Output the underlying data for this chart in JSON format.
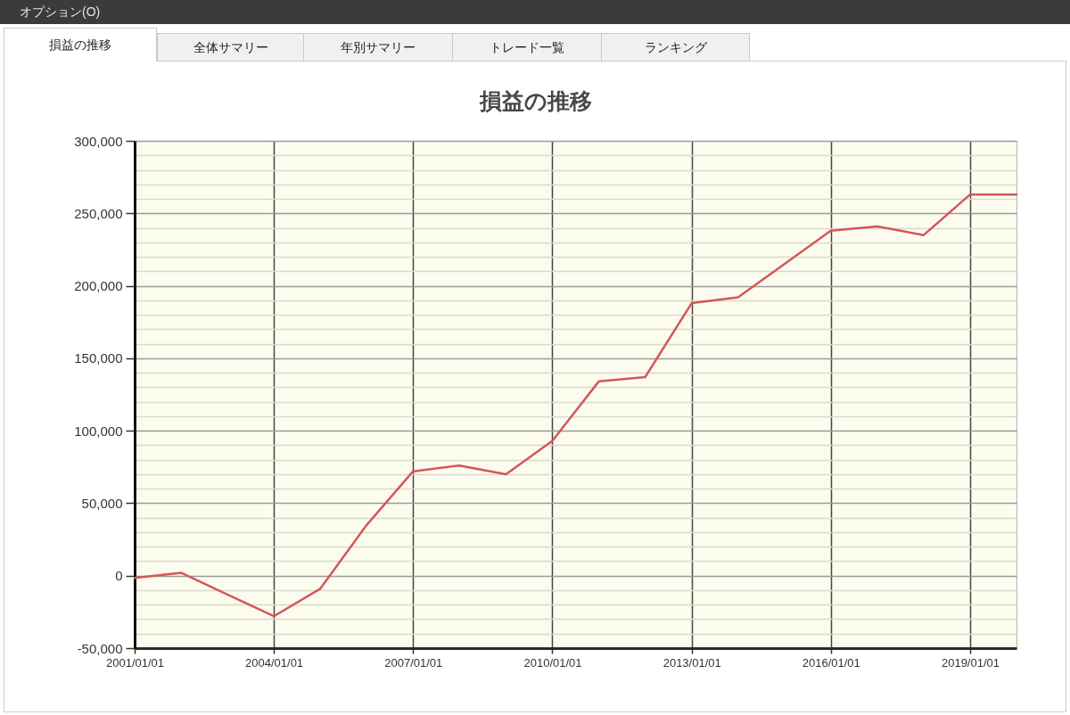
{
  "chart_data": {
    "type": "line",
    "title": "損益の推移",
    "annotations": [
      "オプション(O)",
      "損益の推移",
      "全体サマリー",
      "年別サマリー",
      "トレード一覧",
      "ランキング"
    ],
    "x": [
      "2001-01-01",
      "2002-01-01",
      "2004-01-01",
      "2005-01-01",
      "2006-01-01",
      "2007-01-01",
      "2008-01-01",
      "2009-01-01",
      "2010-01-01",
      "2011-01-01",
      "2012-01-01",
      "2013-01-01",
      "2014-01-01",
      "2016-01-01",
      "2017-01-01",
      "2018-01-01",
      "2019-01-01",
      "2020-01-01"
    ],
    "series": [
      {
        "color": "#d35858",
        "values": [
          -1500,
          2000,
          -28000,
          -9000,
          35000,
          72000,
          76000,
          70000,
          93000,
          134000,
          137000,
          188000,
          192000,
          238000,
          241000,
          235000,
          263000,
          263000
        ]
      }
    ],
    "xlim": [
      "2001-01-01",
      "2020-01-01"
    ],
    "xticks": [
      {
        "value": "2001-01-01",
        "label": "2001/01/01"
      },
      {
        "value": "2004-01-01",
        "label": "2004/01/01"
      },
      {
        "value": "2007-01-01",
        "label": "2007/01/01"
      },
      {
        "value": "2010-01-01",
        "label": "2010/01/01"
      },
      {
        "value": "2013-01-01",
        "label": "2013/01/01"
      },
      {
        "value": "2016-01-01",
        "label": "2016/01/01"
      },
      {
        "value": "2019-01-01",
        "label": "2019/01/01"
      }
    ],
    "ylim": [
      -50000,
      300000
    ],
    "yticks": [
      {
        "value": -50000,
        "label": "-50,000"
      },
      {
        "value": -40000,
        "label": null
      },
      {
        "value": -30000,
        "label": null
      },
      {
        "value": -20000,
        "label": null
      },
      {
        "value": -10000,
        "label": null
      },
      0,
      {
        "value": 10000,
        "label": null
      },
      {
        "value": 20000,
        "label": null
      },
      {
        "value": 30000,
        "label": null
      },
      {
        "value": 40000,
        "label": null
      },
      {
        "value": 50000,
        "label": "50,000"
      },
      {
        "value": 60000,
        "label": null
      },
      {
        "value": 70000,
        "label": null
      },
      {
        "value": 80000,
        "label": null
      },
      {
        "value": 90000,
        "label": null
      },
      {
        "value": 100000,
        "label": "100,000"
      },
      {
        "value": 110000,
        "label": null
      },
      {
        "value": 120000,
        "label": null
      },
      {
        "value": 130000,
        "label": null
      },
      {
        "value": 140000,
        "label": null
      },
      {
        "value": 150000,
        "label": "150,000"
      },
      {
        "value": 160000,
        "label": null
      },
      {
        "value": 170000,
        "label": null
      },
      {
        "value": 180000,
        "label": null
      },
      {
        "value": 190000,
        "label": null
      },
      {
        "value": 200000,
        "label": "200,000"
      },
      {
        "value": 210000,
        "label": null
      },
      {
        "value": 220000,
        "label": null
      },
      {
        "value": 230000,
        "label": null
      },
      {
        "value": 240000,
        "label": null
      },
      {
        "value": 250000,
        "label": "250,000"
      },
      {
        "value": 260000,
        "label": null
      },
      {
        "value": 270000,
        "label": null
      },
      {
        "value": 280000,
        "label": null
      },
      {
        "value": 290000,
        "label": null
      },
      {
        "value": 300000,
        "label": "300,000"
      }
    ],
    "grid": true,
    "line_style": "solid"
  }
}
